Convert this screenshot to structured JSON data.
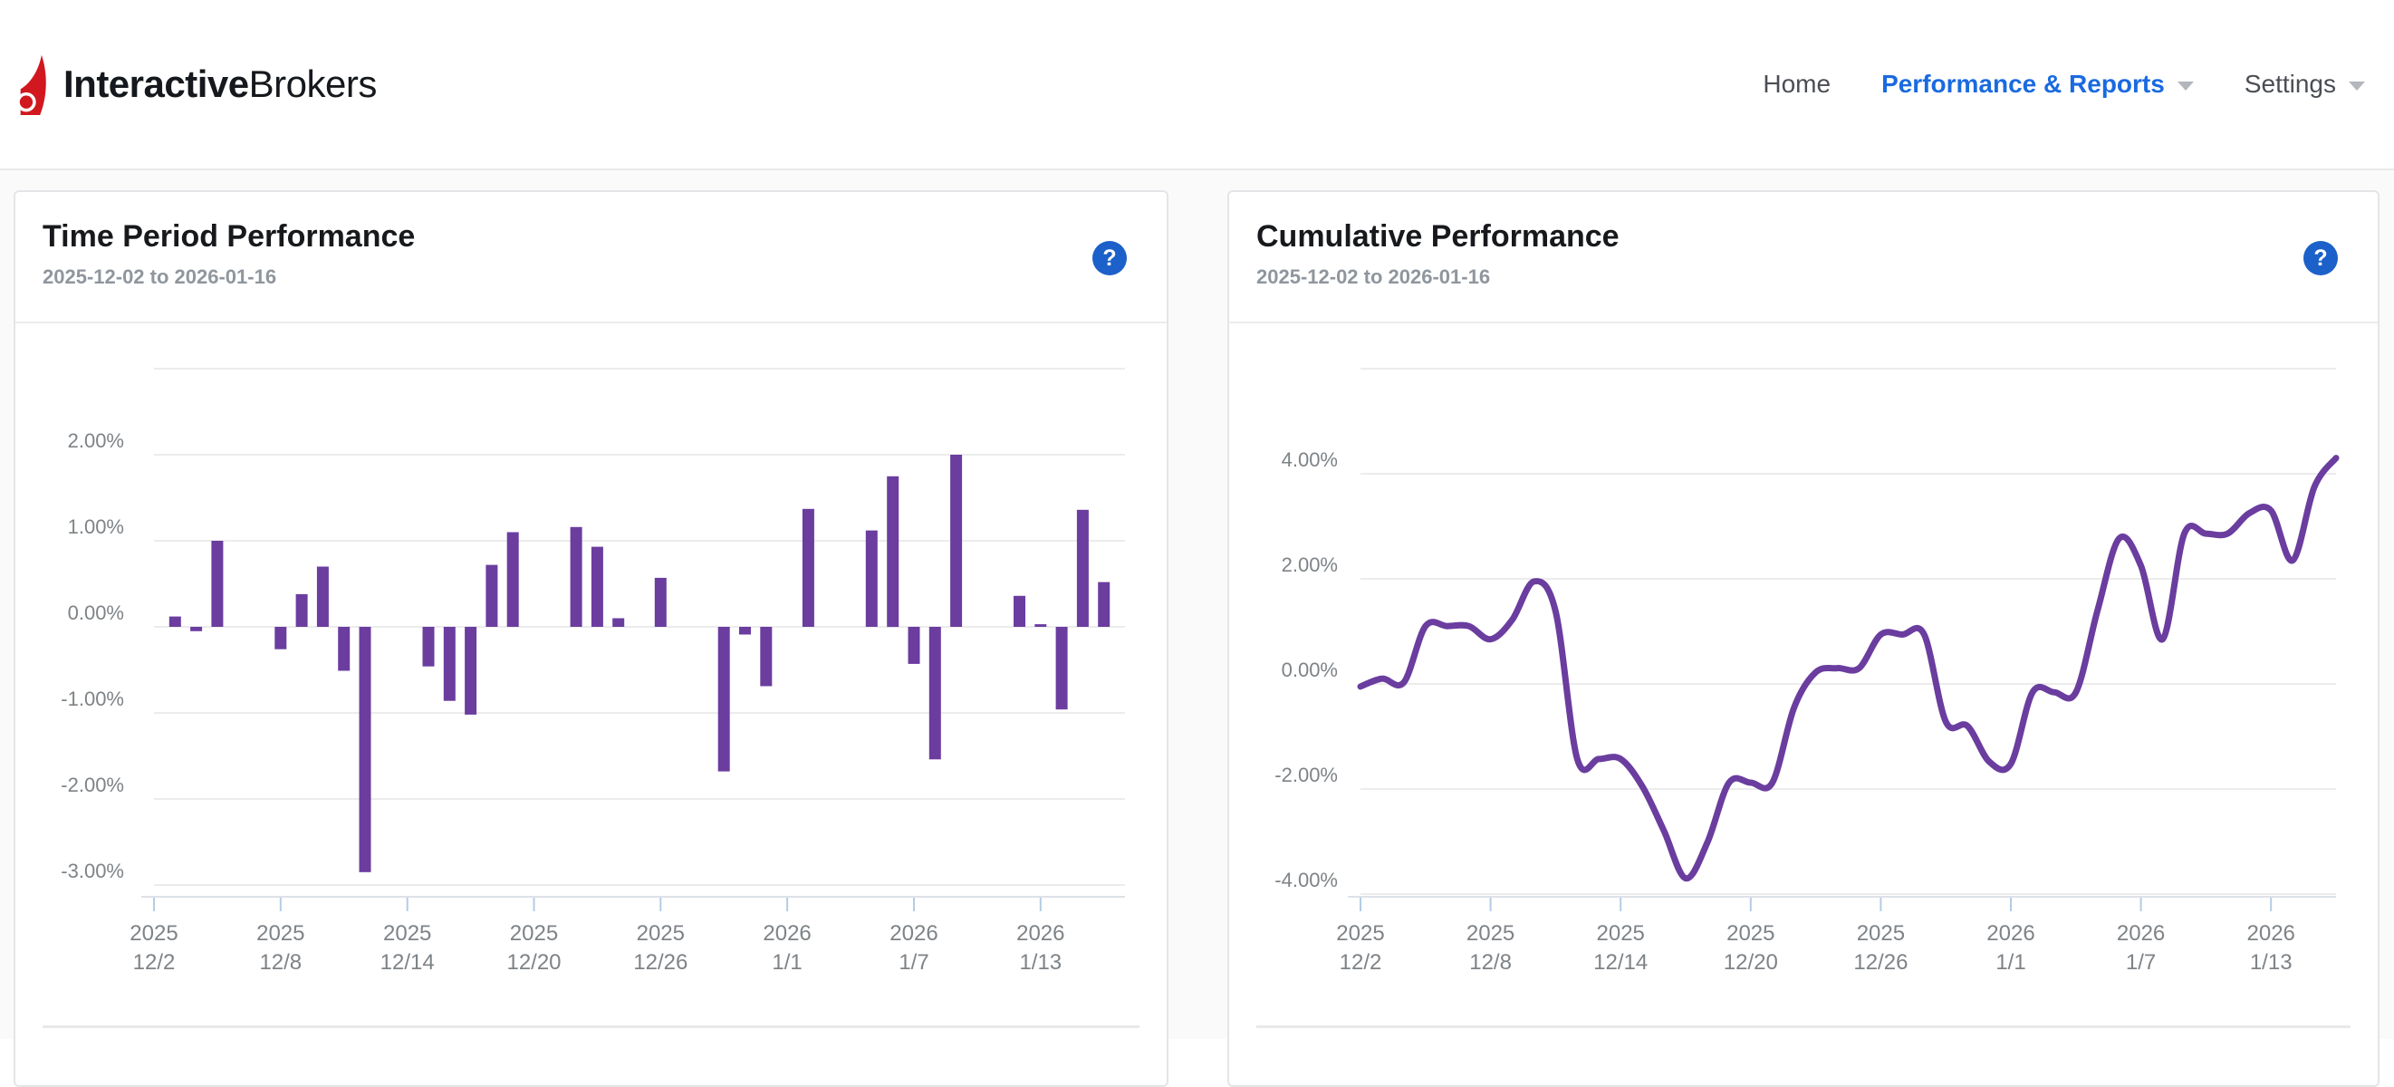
{
  "header": {
    "logo": {
      "bold": "Interactive",
      "regular": "Brokers"
    },
    "nav": [
      {
        "label": "Home",
        "active": false,
        "caret": false
      },
      {
        "label": "Performance & Reports",
        "active": true,
        "caret": true
      },
      {
        "label": "Settings",
        "active": false,
        "caret": true
      }
    ]
  },
  "cards": [
    {
      "title": "Time Period Performance",
      "subtitle": "2025-12-02 to 2026-01-16",
      "help_glyph": "?"
    },
    {
      "title": "Cumulative Performance",
      "subtitle": "2025-12-02 to 2026-01-16",
      "help_glyph": "?"
    }
  ],
  "colors": {
    "brand_red": "#D1181F",
    "nav_active_blue": "#1A6AE0",
    "nav_text": "#4A4E54",
    "caret_gray": "#B3B7BC",
    "title_text": "#17191C",
    "subtitle_text": "#8F969D",
    "help_blue": "#1C60C9",
    "purple": "#6A3D9F",
    "grid": "#ECECEC",
    "axis_text": "#7E8387",
    "axis_line": "#DCE2E8",
    "tick_blue": "#B3CCE6",
    "card_border": "#E3E5E7",
    "page_bg": "#FAFAFA"
  },
  "chart_data": [
    {
      "type": "bar",
      "title": "Time Period Performance",
      "date_range": "2025-12-02 to 2026-01-16",
      "x_start": "2025-12-02",
      "x_end": "2026-01-16",
      "ylim": [
        -3.15,
        3.0
      ],
      "grid": true,
      "legend": "none",
      "y_gridlines": [
        3,
        2,
        1,
        0,
        -1,
        -2,
        -3
      ],
      "y_labels": [
        {
          "value": 2,
          "label": "2.00%"
        },
        {
          "value": 1,
          "label": "1.00%"
        },
        {
          "value": 0,
          "label": "0.00%"
        },
        {
          "value": -1,
          "label": "-1.00%"
        },
        {
          "value": -2,
          "label": "-2.00%"
        },
        {
          "value": -3,
          "label": "-3.00%"
        }
      ],
      "x_ticks": [
        {
          "date": "2025-12-02",
          "line1": "2025",
          "line2": "12/2"
        },
        {
          "date": "2025-12-08",
          "line1": "2025",
          "line2": "12/8"
        },
        {
          "date": "2025-12-14",
          "line1": "2025",
          "line2": "12/14"
        },
        {
          "date": "2025-12-20",
          "line1": "2025",
          "line2": "12/20"
        },
        {
          "date": "2025-12-26",
          "line1": "2025",
          "line2": "12/26"
        },
        {
          "date": "2026-01-01",
          "line1": "2026",
          "line2": "1/1"
        },
        {
          "date": "2026-01-07",
          "line1": "2026",
          "line2": "1/7"
        },
        {
          "date": "2026-01-13",
          "line1": "2026",
          "line2": "1/13"
        }
      ],
      "points": [
        {
          "date": "2025-12-03",
          "value": 0.12
        },
        {
          "date": "2025-12-04",
          "value": -0.05
        },
        {
          "date": "2025-12-05",
          "value": 1.0
        },
        {
          "date": "2025-12-08",
          "value": -0.26
        },
        {
          "date": "2025-12-09",
          "value": 0.38
        },
        {
          "date": "2025-12-10",
          "value": 0.7
        },
        {
          "date": "2025-12-11",
          "value": -0.51
        },
        {
          "date": "2025-12-12",
          "value": -2.85
        },
        {
          "date": "2025-12-15",
          "value": -0.46
        },
        {
          "date": "2025-12-16",
          "value": -0.86
        },
        {
          "date": "2025-12-17",
          "value": -1.02
        },
        {
          "date": "2025-12-18",
          "value": 0.72
        },
        {
          "date": "2025-12-19",
          "value": 1.1
        },
        {
          "date": "2025-12-22",
          "value": 1.16
        },
        {
          "date": "2025-12-23",
          "value": 0.93
        },
        {
          "date": "2025-12-24",
          "value": 0.1
        },
        {
          "date": "2025-12-26",
          "value": 0.57
        },
        {
          "date": "2025-12-29",
          "value": -1.68
        },
        {
          "date": "2025-12-30",
          "value": -0.09
        },
        {
          "date": "2025-12-31",
          "value": -0.69
        },
        {
          "date": "2026-01-02",
          "value": 1.37
        },
        {
          "date": "2026-01-05",
          "value": 1.12
        },
        {
          "date": "2026-01-06",
          "value": 1.75
        },
        {
          "date": "2026-01-07",
          "value": -0.43
        },
        {
          "date": "2026-01-08",
          "value": -1.54
        },
        {
          "date": "2026-01-09",
          "value": 2.0
        },
        {
          "date": "2026-01-12",
          "value": 0.36
        },
        {
          "date": "2026-01-13",
          "value": 0.03
        },
        {
          "date": "2026-01-14",
          "value": -0.96
        },
        {
          "date": "2026-01-15",
          "value": 1.36
        },
        {
          "date": "2026-01-16",
          "value": 0.52
        }
      ]
    },
    {
      "type": "line",
      "title": "Cumulative Performance",
      "date_range": "2025-12-02 to 2026-01-16",
      "x_start": "2025-12-02",
      "x_end": "2026-01-16",
      "ylim": [
        -4.05,
        6.0
      ],
      "grid": true,
      "legend": "none",
      "smooth": true,
      "y_gridlines": [
        6,
        4,
        2,
        0,
        -2,
        -4
      ],
      "y_labels": [
        {
          "value": 4,
          "label": "4.00%"
        },
        {
          "value": 2,
          "label": "2.00%"
        },
        {
          "value": 0,
          "label": "0.00%"
        },
        {
          "value": -2,
          "label": "-2.00%"
        },
        {
          "value": -4,
          "label": "-4.00%"
        }
      ],
      "x_ticks": [
        {
          "date": "2025-12-02",
          "line1": "2025",
          "line2": "12/2"
        },
        {
          "date": "2025-12-08",
          "line1": "2025",
          "line2": "12/8"
        },
        {
          "date": "2025-12-14",
          "line1": "2025",
          "line2": "12/14"
        },
        {
          "date": "2025-12-20",
          "line1": "2025",
          "line2": "12/20"
        },
        {
          "date": "2025-12-26",
          "line1": "2025",
          "line2": "12/26"
        },
        {
          "date": "2026-01-01",
          "line1": "2026",
          "line2": "1/1"
        },
        {
          "date": "2026-01-07",
          "line1": "2026",
          "line2": "1/7"
        },
        {
          "date": "2026-01-13",
          "line1": "2026",
          "line2": "1/13"
        }
      ],
      "points": [
        {
          "date": "2025-12-02",
          "value": -0.05
        },
        {
          "date": "2025-12-03",
          "value": 0.1
        },
        {
          "date": "2025-12-04",
          "value": 0.03
        },
        {
          "date": "2025-12-05",
          "value": 1.1
        },
        {
          "date": "2025-12-06",
          "value": 1.1
        },
        {
          "date": "2025-12-07",
          "value": 1.1
        },
        {
          "date": "2025-12-08",
          "value": 0.85
        },
        {
          "date": "2025-12-09",
          "value": 1.22
        },
        {
          "date": "2025-12-10",
          "value": 1.95
        },
        {
          "date": "2025-12-11",
          "value": 1.38
        },
        {
          "date": "2025-12-12",
          "value": -1.43
        },
        {
          "date": "2025-12-13",
          "value": -1.43
        },
        {
          "date": "2025-12-14",
          "value": -1.43
        },
        {
          "date": "2025-12-15",
          "value": -1.95
        },
        {
          "date": "2025-12-16",
          "value": -2.8
        },
        {
          "date": "2025-12-17",
          "value": -3.7
        },
        {
          "date": "2025-12-18",
          "value": -3.02
        },
        {
          "date": "2025-12-19",
          "value": -1.88
        },
        {
          "date": "2025-12-20",
          "value": -1.88
        },
        {
          "date": "2025-12-21",
          "value": -1.88
        },
        {
          "date": "2025-12-22",
          "value": -0.45
        },
        {
          "date": "2025-12-23",
          "value": 0.22
        },
        {
          "date": "2025-12-24",
          "value": 0.3
        },
        {
          "date": "2025-12-25",
          "value": 0.3
        },
        {
          "date": "2025-12-26",
          "value": 0.94
        },
        {
          "date": "2025-12-27",
          "value": 0.94
        },
        {
          "date": "2025-12-28",
          "value": 0.94
        },
        {
          "date": "2025-12-29",
          "value": -0.72
        },
        {
          "date": "2025-12-30",
          "value": -0.8
        },
        {
          "date": "2025-12-31",
          "value": -1.48
        },
        {
          "date": "2026-01-01",
          "value": -1.52
        },
        {
          "date": "2026-01-02",
          "value": -0.16
        },
        {
          "date": "2026-01-03",
          "value": -0.16
        },
        {
          "date": "2026-01-04",
          "value": -0.16
        },
        {
          "date": "2026-01-05",
          "value": 1.4
        },
        {
          "date": "2026-01-06",
          "value": 2.77
        },
        {
          "date": "2026-01-07",
          "value": 2.25
        },
        {
          "date": "2026-01-08",
          "value": 0.85
        },
        {
          "date": "2026-01-09",
          "value": 2.86
        },
        {
          "date": "2026-01-10",
          "value": 2.86
        },
        {
          "date": "2026-01-11",
          "value": 2.86
        },
        {
          "date": "2026-01-12",
          "value": 3.25
        },
        {
          "date": "2026-01-13",
          "value": 3.3
        },
        {
          "date": "2026-01-14",
          "value": 2.35
        },
        {
          "date": "2026-01-15",
          "value": 3.75
        },
        {
          "date": "2026-01-16",
          "value": 4.3
        }
      ]
    }
  ]
}
